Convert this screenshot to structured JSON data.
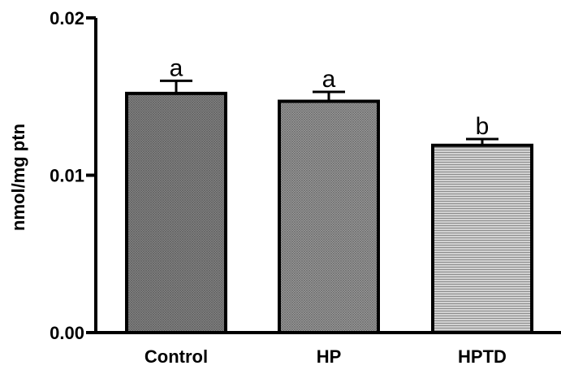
{
  "chart_data": {
    "type": "bar",
    "title": "",
    "xlabel": "",
    "ylabel": "nmol/mg ptn",
    "ylim": [
      0,
      0.02
    ],
    "yticks": [
      0.0,
      0.01,
      0.02
    ],
    "ytick_labels": [
      "0.00",
      "0.01",
      "0.02"
    ],
    "categories": [
      "Control",
      "HP",
      "HPTD"
    ],
    "values": [
      0.0152,
      0.0147,
      0.0119
    ],
    "error_upper": [
      0.0008,
      0.0006,
      0.0004
    ],
    "significance_labels": [
      "a",
      "a",
      "b"
    ],
    "bar_fill_colors": [
      "#8c8c8c",
      "#9a9a9a",
      "#c4c4c4"
    ],
    "bar_patterns": [
      "crosshatch",
      "crosshatch",
      "horizontal-lines"
    ],
    "grid": false,
    "legend": "none"
  }
}
